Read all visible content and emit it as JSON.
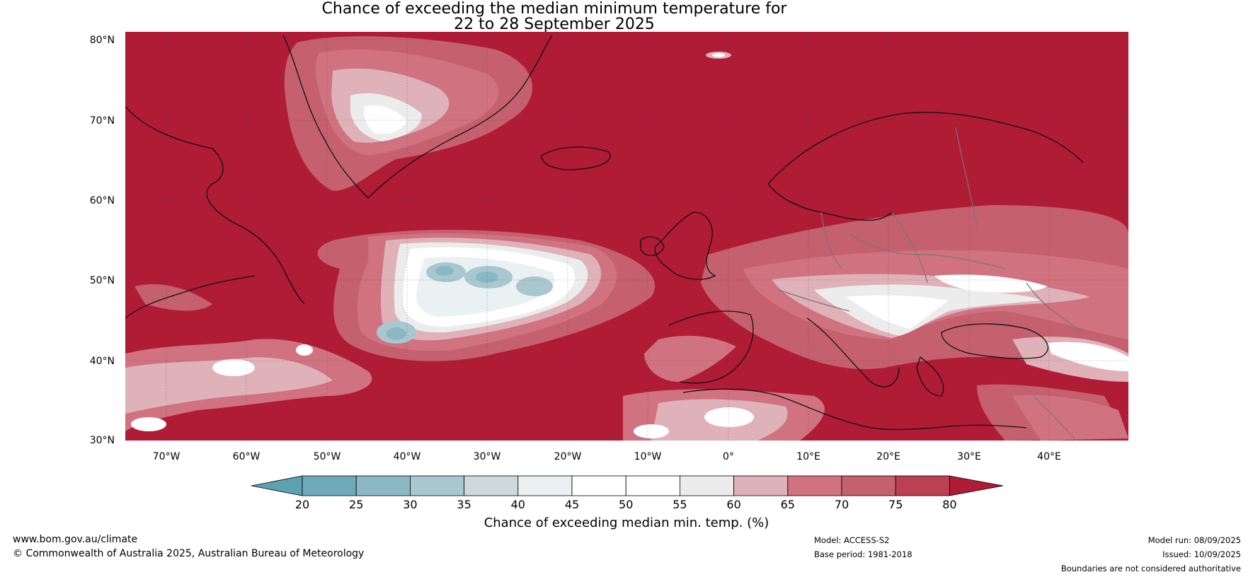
{
  "title": {
    "line1": "Chance of exceeding the median minimum temperature for",
    "line2": "22 to 28 September 2025"
  },
  "map": {
    "lat_labels": [
      "80°N",
      "70°N",
      "60°N",
      "50°N",
      "40°N",
      "30°N"
    ],
    "lon_labels": [
      "70°W",
      "60°W",
      "50°W",
      "40°W",
      "30°W",
      "20°W",
      "10°W",
      "0°",
      "10°E",
      "20°E",
      "30°E",
      "40°E"
    ],
    "background_color": "#b01b36"
  },
  "colorbar": {
    "tick_labels": [
      "20",
      "25",
      "30",
      "35",
      "40",
      "45",
      "50",
      "55",
      "60",
      "65",
      "70",
      "75",
      "80"
    ],
    "colors": [
      "#5ba3b3",
      "#6eabba",
      "#8ab8c4",
      "#a9c7cf",
      "#cdd9dc",
      "#eaf1f3",
      "#ffffff",
      "#ffffff",
      "#ececec",
      "#dfb1b8",
      "#d0727f",
      "#c5606e",
      "#bd3f52",
      "#b01b36"
    ],
    "label": "Chance of exceeding median min. temp. (%)"
  },
  "footer": {
    "website": "www.bom.gov.au/climate",
    "copyright": "© Commonwealth of Australia 2025, Australian Bureau of Meteorology",
    "model": "Model: ACCESS-S2",
    "base_period": "Base period: 1981-2018",
    "model_run": "Model run: 08/09/2025",
    "issued": "Issued: 10/09/2025",
    "disclaimer": "Boundaries are not considered authoritative"
  }
}
